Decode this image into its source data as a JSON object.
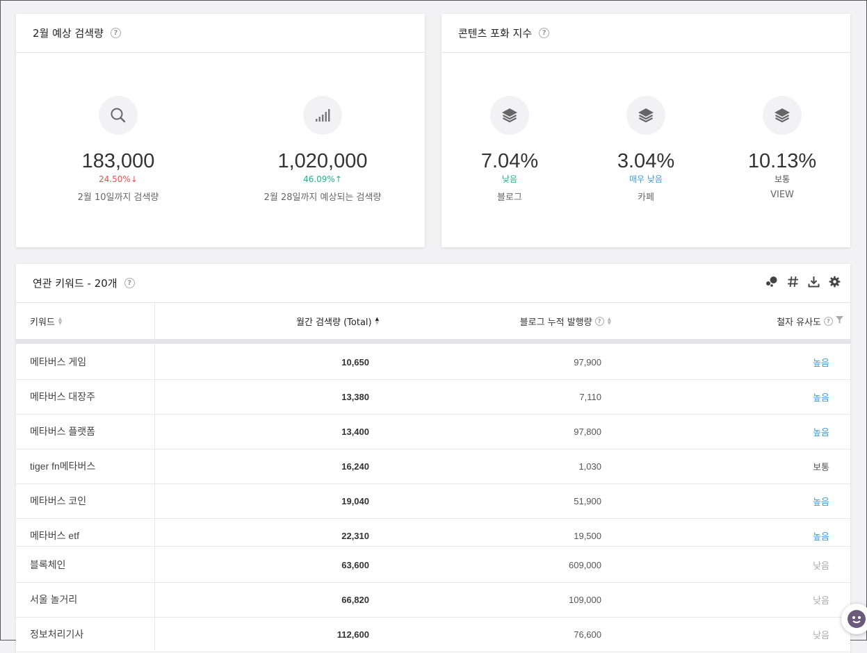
{
  "forecast": {
    "title": "2월 예상 검색량",
    "help": "?",
    "stats": [
      {
        "value": "183,000",
        "change": "24.50%",
        "arrow": "↓",
        "label": "2월 10일까지 검색량"
      },
      {
        "value": "1,020,000",
        "change": "46.09%",
        "arrow": "↑",
        "label": "2월 28일까지 예상되는 검색량"
      }
    ]
  },
  "saturation": {
    "title": "콘텐츠 포화 지수",
    "help": "?",
    "stats": [
      {
        "value": "7.04%",
        "level": "낮음",
        "label": "블로그"
      },
      {
        "value": "3.04%",
        "level": "매우 낮음",
        "label": "카페"
      },
      {
        "value": "10.13%",
        "level": "보통",
        "label": "VIEW"
      }
    ]
  },
  "related": {
    "title": "연관 키워드 - 20개",
    "help": "?",
    "tools": [
      "bubble-icon",
      "hashtag-icon",
      "download-icon",
      "gear-icon"
    ],
    "columns": {
      "keyword": "키워드",
      "volume": "월간 검색량 (Total)",
      "blog": "블로그 누적 발행량",
      "similarity": "철자 유사도"
    },
    "rows": [
      {
        "keyword": "메타버스 게임",
        "volume": "10,650",
        "blog": "97,900",
        "similarity": "높음"
      },
      {
        "keyword": "메타버스 대장주",
        "volume": "13,380",
        "blog": "7,110",
        "similarity": "높음"
      },
      {
        "keyword": "메타버스 플랫폼",
        "volume": "13,400",
        "blog": "97,800",
        "similarity": "높음"
      },
      {
        "keyword": "tiger fn메타버스",
        "volume": "16,240",
        "blog": "1,030",
        "similarity": "보통"
      },
      {
        "keyword": "메타버스 코인",
        "volume": "19,040",
        "blog": "51,900",
        "similarity": "높음"
      },
      {
        "keyword": "메타버스 etf",
        "volume": "22,310",
        "blog": "19,500",
        "similarity": "높음"
      },
      {
        "keyword": "블록체인",
        "volume": "63,600",
        "blog": "609,000",
        "similarity": "낮음"
      },
      {
        "keyword": "서울 놀거리",
        "volume": "66,820",
        "blog": "109,000",
        "similarity": "낮음"
      },
      {
        "keyword": "정보처리기사",
        "volume": "112,600",
        "blog": "76,600",
        "similarity": "낮음"
      }
    ]
  }
}
